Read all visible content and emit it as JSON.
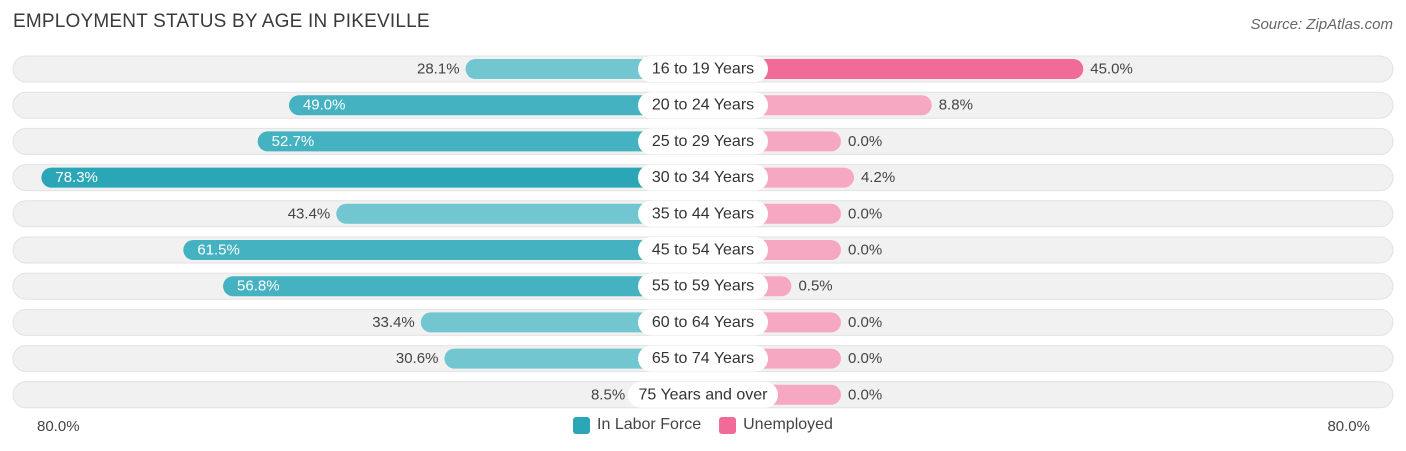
{
  "header": {
    "title": "EMPLOYMENT STATUS BY AGE IN PIKEVILLE",
    "source": "Source: ZipAtlas.com"
  },
  "colors": {
    "labor": "#2ba6b7",
    "labor_light": "#72c6d0",
    "unemployed": "#f06b98",
    "unemployed_light": "#f6a8c3",
    "track": "#eeeeee"
  },
  "chart_data": {
    "type": "bar",
    "orientation": "horizontal-diverging",
    "title": "EMPLOYMENT STATUS BY AGE IN PIKEVILLE",
    "categories": [
      "16 to 19 Years",
      "20 to 24 Years",
      "25 to 29 Years",
      "30 to 34 Years",
      "35 to 44 Years",
      "45 to 54 Years",
      "55 to 59 Years",
      "60 to 64 Years",
      "65 to 74 Years",
      "75 Years and over"
    ],
    "series": [
      {
        "name": "In Labor Force",
        "values": [
          28.1,
          49.0,
          52.7,
          78.3,
          43.4,
          61.5,
          56.8,
          33.4,
          30.6,
          8.5
        ],
        "labels": [
          "28.1%",
          "49.0%",
          "52.7%",
          "78.3%",
          "43.4%",
          "61.5%",
          "56.8%",
          "33.4%",
          "30.6%",
          "8.5%"
        ]
      },
      {
        "name": "Unemployed",
        "values": [
          45.0,
          8.8,
          0.0,
          4.2,
          0.0,
          0.0,
          0.5,
          0.0,
          0.0,
          0.0
        ],
        "labels": [
          "45.0%",
          "8.8%",
          "0.0%",
          "4.2%",
          "0.0%",
          "0.0%",
          "0.5%",
          "0.0%",
          "0.0%",
          "0.0%"
        ]
      }
    ],
    "axis_max": 80.0,
    "axis_left_label": "80.0%",
    "axis_right_label": "80.0%",
    "legend": [
      "In Labor Force",
      "Unemployed"
    ],
    "legend_position": "bottom-center"
  }
}
